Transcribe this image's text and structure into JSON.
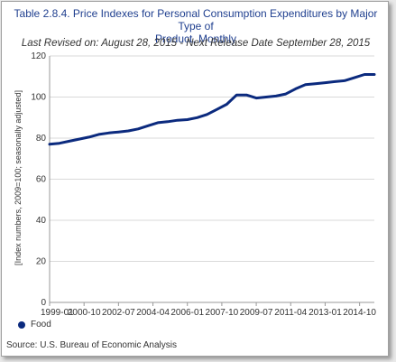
{
  "title_line1": "Table 2.8.4. Price Indexes for Personal Consumption Expenditures by Major Type of",
  "title_line2": "Product, Monthly",
  "subtitle": "Last Revised on: August 28, 2015 - Next Release Date September 28, 2015",
  "source": "Source: U.S. Bureau of Economic  Analysis",
  "colors": {
    "series": "#0b2a7e",
    "grid": "#d9d9d9",
    "axis": "#999999",
    "title": "#1f3f8f"
  },
  "chart_data": {
    "type": "line",
    "title": "Table 2.8.4. Price Indexes for Personal Consumption Expenditures by Major Type of Product, Monthly",
    "subtitle": "Last Revised on: August 28, 2015 - Next Release Date September 28, 2015",
    "xlabel": "",
    "ylabel": "[Index numbers, 2009=100; seasonally adjusted]",
    "ylim": [
      0,
      120
    ],
    "yticks": [
      0,
      20,
      40,
      60,
      80,
      100,
      120
    ],
    "xlim": [
      "1999-01",
      "2015-07"
    ],
    "xticks": [
      "1999-01",
      "2000-10",
      "2002-07",
      "2004-04",
      "2006-01",
      "2007-10",
      "2009-07",
      "2011-04",
      "2013-01",
      "2014-10"
    ],
    "grid": true,
    "legend_position": "bottom-left",
    "series": [
      {
        "name": "Food",
        "color": "#0b2a7e",
        "x": [
          "1999-01",
          "1999-07",
          "2000-01",
          "2000-07",
          "2001-01",
          "2001-07",
          "2002-01",
          "2002-07",
          "2003-01",
          "2003-07",
          "2004-01",
          "2004-07",
          "2005-01",
          "2005-07",
          "2006-01",
          "2006-07",
          "2007-01",
          "2007-07",
          "2008-01",
          "2008-07",
          "2009-01",
          "2009-07",
          "2010-01",
          "2010-07",
          "2011-01",
          "2011-07",
          "2012-01",
          "2012-07",
          "2013-01",
          "2013-07",
          "2014-01",
          "2014-07",
          "2015-01",
          "2015-07"
        ],
        "values": [
          77,
          77.5,
          78.5,
          79.5,
          80.5,
          81.8,
          82.5,
          83,
          83.5,
          84.5,
          86,
          87.5,
          88,
          88.7,
          89,
          90,
          91.5,
          94,
          96.5,
          101,
          101,
          99.5,
          100,
          100.5,
          101.5,
          104,
          106,
          106.5,
          107,
          107.5,
          108,
          109.5,
          111,
          111
        ]
      }
    ]
  },
  "legend": {
    "label": "Food"
  }
}
